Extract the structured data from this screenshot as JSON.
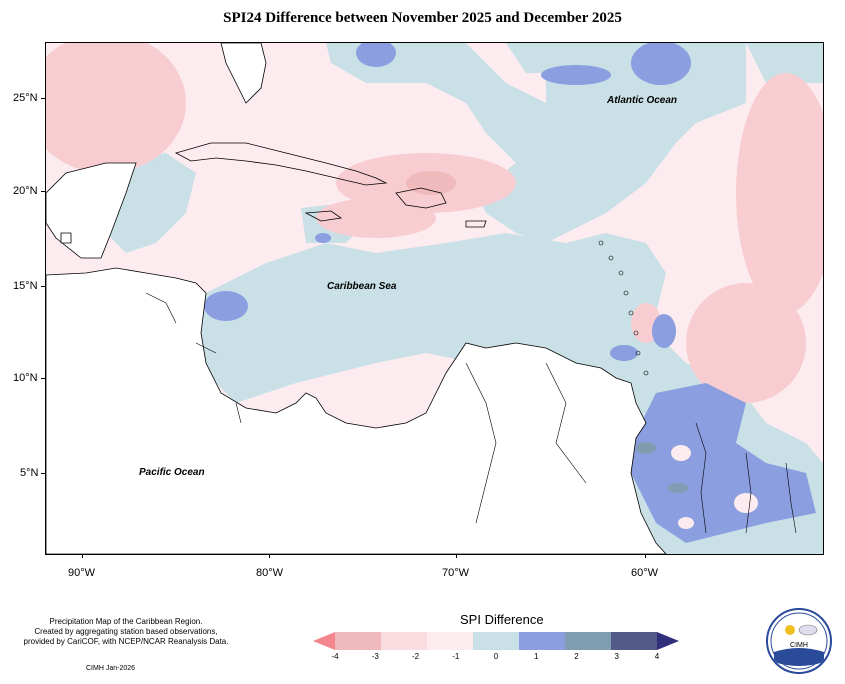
{
  "title": "SPI24 Difference between November 2025 and December 2025",
  "map": {
    "latitude_labels": [
      "25°N",
      "20°N",
      "15°N",
      "10°N",
      "5°N"
    ],
    "longitude_labels": [
      "90°W",
      "80°W",
      "70°W",
      "60°W"
    ],
    "regions": {
      "atlantic": "Atlantic Ocean",
      "caribbean": "Caribbean Sea",
      "pacific": "Pacific Ocean"
    }
  },
  "legend": {
    "title": "SPI Difference",
    "ticks": [
      "-4",
      "-3",
      "-2",
      "-1",
      "0",
      "1",
      "2",
      "3",
      "4"
    ],
    "colors": [
      "#f4868e",
      "#f0b9bc",
      "#fbdce0",
      "#fdecef",
      "#c9e0e6",
      "#8a9ee0",
      "#7f9cb0",
      "#545a88",
      "#2f2f7a"
    ]
  },
  "notes": {
    "line1": "Precipitation Map of the Caribbean Region.",
    "line2": "Created by aggregating station based observations,",
    "line3": "provided by CariCOF, with NCEP/NCAR Reanalysis Data.",
    "credit": "CIMH Jan-2026"
  },
  "logo": {
    "text": "CIMH"
  }
}
